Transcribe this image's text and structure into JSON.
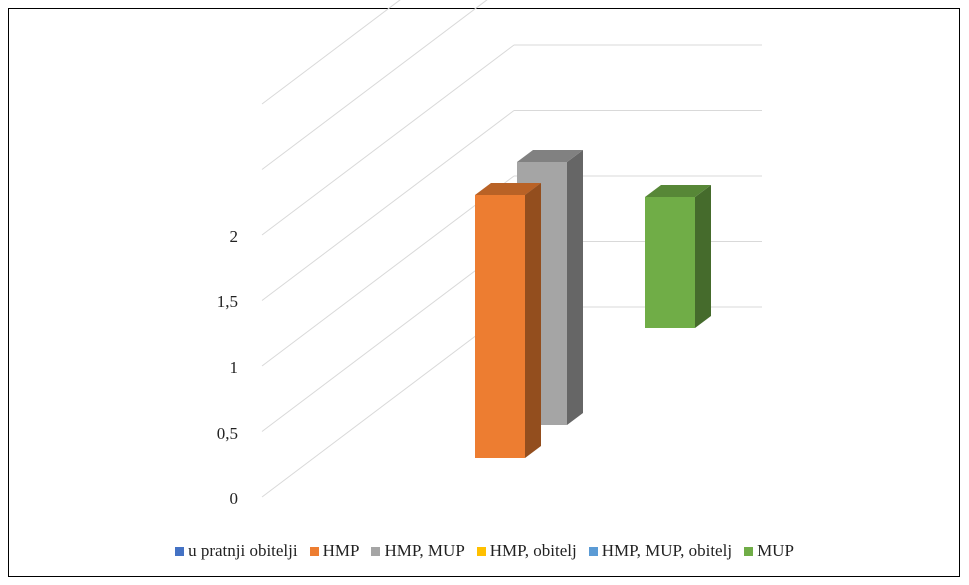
{
  "chart_data": {
    "type": "bar",
    "style": "3d-clustered-column",
    "categories": [
      ""
    ],
    "series": [
      {
        "name": "u pratnji obitelji",
        "color": "#4472C4",
        "values": [
          null
        ]
      },
      {
        "name": "HMP",
        "color": "#ED7D31",
        "values": [
          2
        ]
      },
      {
        "name": "HMP, MUP",
        "color": "#A5A5A5",
        "values": [
          2
        ]
      },
      {
        "name": "HMP, obitelj",
        "color": "#FFC000",
        "values": [
          null
        ]
      },
      {
        "name": "HMP, MUP, obitelj",
        "color": "#5B9BD5",
        "values": [
          null
        ]
      },
      {
        "name": "MUP",
        "color": "#70AD47",
        "values": [
          1
        ]
      }
    ],
    "yticks": [
      "0",
      "0,5",
      "1",
      "1,5",
      "2"
    ],
    "ylim": [
      0,
      2
    ],
    "grid": true,
    "legend": "bottom"
  }
}
